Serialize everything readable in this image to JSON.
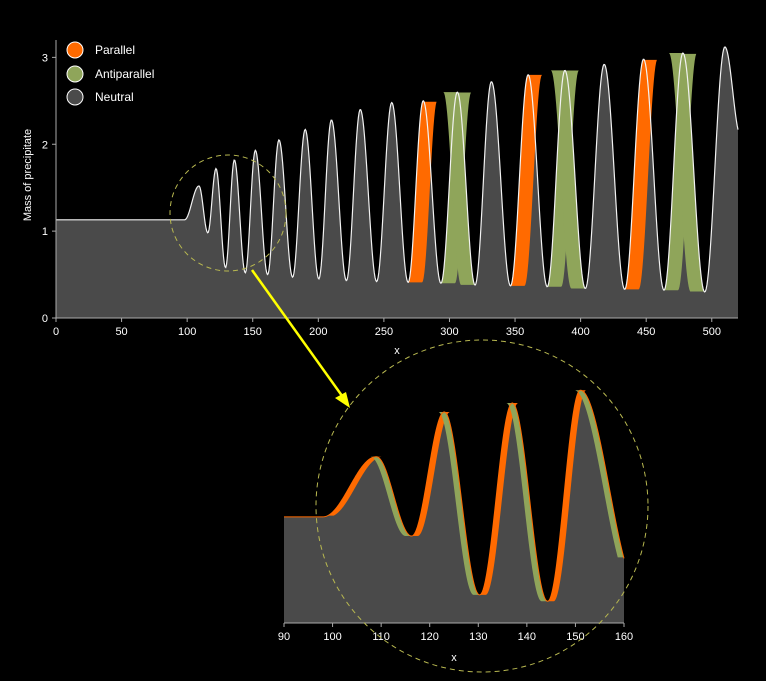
{
  "chart_data": [
    {
      "type": "area",
      "xlabel": "x",
      "ylabel": "Mass of precipitate",
      "xlim": [
        0,
        520
      ],
      "ylim": [
        0,
        3.2
      ],
      "x_ticks": [
        0,
        50,
        100,
        150,
        200,
        250,
        300,
        350,
        400,
        450,
        500
      ],
      "y_ticks": [
        0,
        1,
        2,
        3
      ],
      "grid": false,
      "legend_position": "top-left",
      "legend": [
        {
          "label": "Parallel",
          "color": "#ff6a00"
        },
        {
          "label": "Antiparallel",
          "color": "#8fa55a"
        },
        {
          "label": "Neutral",
          "color": "#4a4a4a"
        }
      ],
      "baseline_value": 1.13,
      "peaks": [
        {
          "x": 109,
          "peak": 1.52,
          "trough": 0.98
        },
        {
          "x": 122,
          "peak": 1.72,
          "trough": 0.58
        },
        {
          "x": 136,
          "peak": 1.82,
          "trough": 0.52
        },
        {
          "x": 152,
          "peak": 1.93,
          "trough": 0.5
        },
        {
          "x": 170,
          "peak": 2.05,
          "trough": 0.47
        },
        {
          "x": 190,
          "peak": 2.17,
          "trough": 0.45
        },
        {
          "x": 210,
          "peak": 2.28,
          "trough": 0.43
        },
        {
          "x": 232,
          "peak": 2.4,
          "trough": 0.42
        },
        {
          "x": 256,
          "peak": 2.48,
          "trough": 0.41
        },
        {
          "x": 280,
          "peak": 2.5,
          "trough": 0.4
        },
        {
          "x": 306,
          "peak": 2.6,
          "trough": 0.38
        },
        {
          "x": 332,
          "peak": 2.72,
          "trough": 0.37
        },
        {
          "x": 360,
          "peak": 2.8,
          "trough": 0.36
        },
        {
          "x": 388,
          "peak": 2.85,
          "trough": 0.34
        },
        {
          "x": 418,
          "peak": 2.92,
          "trough": 0.33
        },
        {
          "x": 448,
          "peak": 2.98,
          "trough": 0.32
        },
        {
          "x": 478,
          "peak": 3.05,
          "trough": 0.3
        },
        {
          "x": 510,
          "peak": 3.12,
          "trough": 0.28
        }
      ],
      "end_value": 2.1
    },
    {
      "type": "area",
      "xlabel": "x",
      "ylabel": "",
      "xlim": [
        90,
        160
      ],
      "ylim": [
        0.3,
        2.2
      ],
      "x_ticks": [
        90,
        100,
        110,
        120,
        130,
        140,
        150,
        160
      ],
      "grid": false,
      "baseline_value": 1.13,
      "peaks": [
        {
          "x": 109,
          "peak": 1.6,
          "trough": 0.98
        },
        {
          "x": 123,
          "peak": 1.95,
          "trough": 0.52
        },
        {
          "x": 137,
          "peak": 2.02,
          "trough": 0.47
        },
        {
          "x": 151,
          "peak": 2.12,
          "trough": 0.42
        }
      ],
      "end_value": 0.58
    }
  ],
  "annotation": {
    "arrow_color": "#ffff00",
    "circle_color": "#b8b850"
  }
}
